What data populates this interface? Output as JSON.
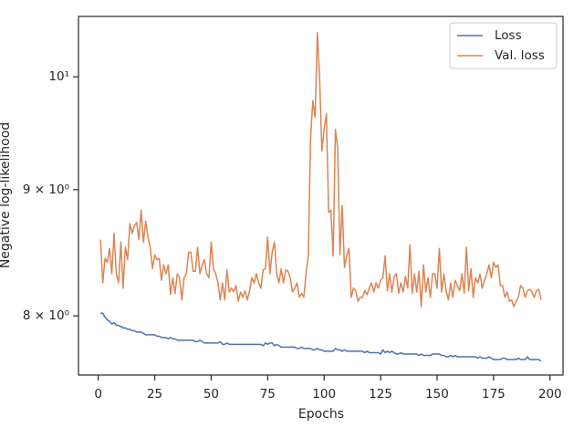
{
  "chart_data": {
    "type": "line",
    "xlabel": "Epochs",
    "ylabel": "Negative log-likelihood",
    "yscale": "log",
    "legend": "upper right",
    "grid": false,
    "xlim": [
      -8.75,
      205.75
    ],
    "ylim": [
      7.57,
      10.58
    ],
    "xticks": [
      0,
      25,
      50,
      75,
      100,
      125,
      150,
      175,
      200
    ],
    "yticks": [
      {
        "value": 8,
        "label": "8 × 10⁰"
      },
      {
        "value": 9,
        "label": "9 × 10⁰"
      },
      {
        "value": 10,
        "label": "10¹"
      }
    ],
    "x": [
      1,
      2,
      3,
      4,
      5,
      6,
      7,
      8,
      9,
      10,
      11,
      12,
      13,
      14,
      15,
      16,
      17,
      18,
      19,
      20,
      21,
      22,
      23,
      24,
      25,
      26,
      27,
      28,
      29,
      30,
      31,
      32,
      33,
      34,
      35,
      36,
      37,
      38,
      39,
      40,
      41,
      42,
      43,
      44,
      45,
      46,
      47,
      48,
      49,
      50,
      51,
      52,
      53,
      54,
      55,
      56,
      57,
      58,
      59,
      60,
      61,
      62,
      63,
      64,
      65,
      66,
      67,
      68,
      69,
      70,
      71,
      72,
      73,
      74,
      75,
      76,
      77,
      78,
      79,
      80,
      81,
      82,
      83,
      84,
      85,
      86,
      87,
      88,
      89,
      90,
      91,
      92,
      93,
      94,
      95,
      96,
      97,
      98,
      99,
      100,
      101,
      102,
      103,
      104,
      105,
      106,
      107,
      108,
      109,
      110,
      111,
      112,
      113,
      114,
      115,
      116,
      117,
      118,
      119,
      120,
      121,
      122,
      123,
      124,
      125,
      126,
      127,
      128,
      129,
      130,
      131,
      132,
      133,
      134,
      135,
      136,
      137,
      138,
      139,
      140,
      141,
      142,
      143,
      144,
      145,
      146,
      147,
      148,
      149,
      150,
      151,
      152,
      153,
      154,
      155,
      156,
      157,
      158,
      159,
      160,
      161,
      162,
      163,
      164,
      165,
      166,
      167,
      168,
      169,
      170,
      171,
      172,
      173,
      174,
      175,
      176,
      177,
      178,
      179,
      180,
      181,
      182,
      183,
      184,
      185,
      186,
      187,
      188,
      189,
      190,
      191,
      192,
      193,
      194,
      195,
      196
    ],
    "series": [
      {
        "name": "Loss",
        "color": "#4c72b0",
        "values": [
          8.02,
          8.02,
          7.99,
          7.97,
          7.96,
          7.94,
          7.95,
          7.93,
          7.93,
          7.92,
          7.91,
          7.91,
          7.9,
          7.9,
          7.89,
          7.89,
          7.88,
          7.88,
          7.88,
          7.87,
          7.86,
          7.86,
          7.86,
          7.86,
          7.86,
          7.85,
          7.85,
          7.84,
          7.84,
          7.84,
          7.83,
          7.84,
          7.83,
          7.83,
          7.82,
          7.82,
          7.82,
          7.82,
          7.82,
          7.82,
          7.82,
          7.82,
          7.81,
          7.81,
          7.82,
          7.81,
          7.8,
          7.8,
          7.8,
          7.8,
          7.8,
          7.8,
          7.8,
          7.81,
          7.79,
          7.79,
          7.8,
          7.79,
          7.79,
          7.79,
          7.79,
          7.79,
          7.79,
          7.79,
          7.79,
          7.79,
          7.79,
          7.79,
          7.79,
          7.79,
          7.79,
          7.79,
          7.78,
          7.8,
          7.79,
          7.8,
          7.8,
          7.78,
          7.79,
          7.78,
          7.77,
          7.77,
          7.77,
          7.77,
          7.77,
          7.77,
          7.77,
          7.76,
          7.76,
          7.77,
          7.76,
          7.76,
          7.76,
          7.76,
          7.75,
          7.75,
          7.76,
          7.75,
          7.75,
          7.74,
          7.74,
          7.74,
          7.74,
          7.74,
          7.76,
          7.75,
          7.75,
          7.74,
          7.75,
          7.74,
          7.74,
          7.74,
          7.74,
          7.74,
          7.74,
          7.74,
          7.74,
          7.73,
          7.74,
          7.73,
          7.73,
          7.73,
          7.73,
          7.73,
          7.72,
          7.75,
          7.73,
          7.74,
          7.73,
          7.74,
          7.73,
          7.72,
          7.72,
          7.73,
          7.72,
          7.72,
          7.72,
          7.72,
          7.72,
          7.72,
          7.72,
          7.71,
          7.72,
          7.71,
          7.71,
          7.71,
          7.71,
          7.72,
          7.72,
          7.72,
          7.72,
          7.71,
          7.71,
          7.7,
          7.7,
          7.71,
          7.7,
          7.71,
          7.7,
          7.7,
          7.7,
          7.7,
          7.7,
          7.7,
          7.7,
          7.7,
          7.7,
          7.69,
          7.7,
          7.69,
          7.69,
          7.69,
          7.7,
          7.69,
          7.68,
          7.68,
          7.68,
          7.68,
          7.69,
          7.69,
          7.68,
          7.68,
          7.68,
          7.68,
          7.68,
          7.69,
          7.68,
          7.68,
          7.68,
          7.7,
          7.68,
          7.68,
          7.68,
          7.68,
          7.68,
          7.67
        ]
      },
      {
        "name": "Val. loss",
        "color": "#dd8452",
        "values": [
          8.59,
          8.25,
          8.44,
          8.41,
          8.52,
          8.32,
          8.64,
          8.32,
          8.25,
          8.57,
          8.21,
          8.53,
          8.43,
          8.72,
          8.64,
          8.7,
          8.73,
          8.59,
          8.83,
          8.57,
          8.74,
          8.61,
          8.53,
          8.36,
          8.47,
          8.43,
          8.44,
          8.27,
          8.39,
          8.32,
          8.39,
          8.16,
          8.29,
          8.17,
          8.32,
          8.29,
          8.12,
          8.29,
          8.32,
          8.49,
          8.49,
          8.34,
          8.34,
          8.53,
          8.32,
          8.39,
          8.43,
          8.32,
          8.29,
          8.57,
          8.36,
          8.32,
          8.25,
          8.12,
          8.25,
          8.12,
          8.35,
          8.18,
          8.21,
          8.18,
          8.23,
          8.11,
          8.18,
          8.14,
          8.19,
          8.12,
          8.19,
          8.29,
          8.25,
          8.32,
          8.25,
          8.21,
          8.35,
          8.36,
          8.61,
          8.32,
          8.49,
          8.57,
          8.32,
          8.25,
          8.36,
          8.25,
          8.35,
          8.34,
          8.29,
          8.18,
          8.21,
          8.25,
          8.14,
          8.17,
          8.14,
          8.32,
          8.46,
          9.45,
          9.78,
          9.63,
          10.42,
          9.99,
          9.33,
          9.53,
          9.66,
          8.81,
          8.83,
          8.46,
          9.52,
          9.36,
          8.47,
          8.87,
          8.37,
          8.46,
          8.52,
          8.14,
          8.21,
          8.19,
          8.11,
          8.14,
          8.14,
          8.19,
          8.16,
          8.21,
          8.25,
          8.18,
          8.25,
          8.21,
          8.27,
          8.29,
          8.46,
          8.19,
          8.32,
          8.18,
          8.3,
          8.32,
          8.17,
          8.25,
          8.18,
          8.3,
          8.21,
          8.55,
          8.17,
          8.32,
          8.18,
          8.34,
          8.07,
          8.39,
          8.18,
          8.29,
          8.14,
          8.32,
          8.32,
          8.21,
          8.52,
          8.18,
          8.32,
          8.19,
          8.12,
          8.25,
          8.14,
          8.27,
          8.23,
          8.19,
          8.32,
          8.17,
          8.53,
          8.19,
          8.36,
          8.14,
          8.29,
          8.25,
          8.32,
          8.21,
          8.27,
          8.32,
          8.39,
          8.29,
          8.41,
          8.37,
          8.39,
          8.23,
          8.23,
          8.14,
          8.18,
          8.11,
          8.12,
          8.07,
          8.11,
          8.14,
          8.23,
          8.21,
          8.14,
          8.19,
          8.2,
          8.18,
          8.14,
          8.19,
          8.2,
          8.12
        ]
      }
    ]
  }
}
